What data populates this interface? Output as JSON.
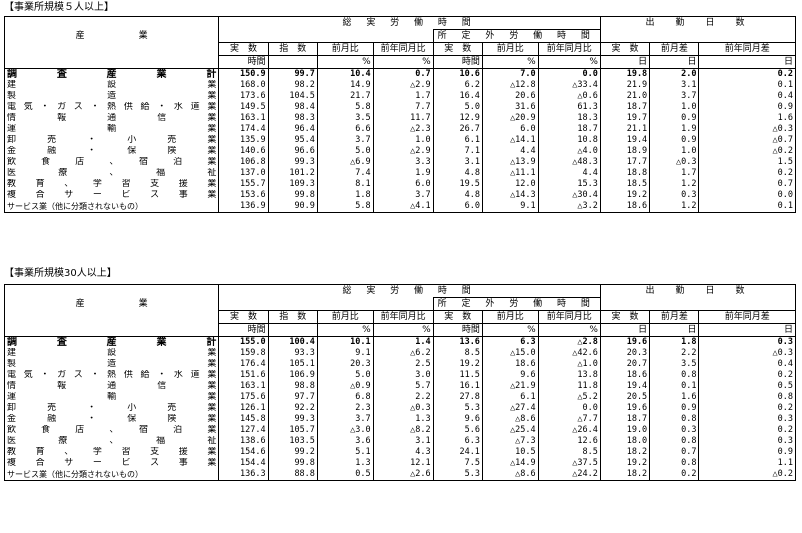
{
  "sections": [
    {
      "caption": "【事業所規模５人以上】",
      "headers": {
        "industry": "産　　　　　　業",
        "total_hours": "総 実 労 働 時 間",
        "overtime": "所 定 外 労 働 時 間",
        "days": "出　勤　日　数",
        "cols": [
          "実　数",
          "指　数",
          "前月比",
          "前年同月比",
          "実　数",
          "前月比",
          "前年同月比",
          "実　数",
          "前月差",
          "前年同月差"
        ],
        "units": [
          "時間",
          "",
          "%",
          "%",
          "時間",
          "%",
          "%",
          "日",
          "日",
          "日"
        ]
      },
      "rows": [
        {
          "name": "調　査　産　業　計",
          "v": [
            "150.9",
            "99.7",
            "10.4",
            "0.7",
            "10.6",
            "7.0",
            "0.0",
            "19.8",
            "2.0",
            "0.2"
          ]
        },
        {
          "name": "建　　　設　　　業",
          "v": [
            "168.0",
            "98.2",
            "14.9",
            "△2.9",
            "6.2",
            "△12.8",
            "△33.4",
            "21.9",
            "3.1",
            "0.1"
          ]
        },
        {
          "name": "製　　　造　　　業",
          "v": [
            "173.6",
            "104.5",
            "21.7",
            "1.7",
            "16.4",
            "20.6",
            "△0.6",
            "21.0",
            "3.7",
            "0.4"
          ]
        },
        {
          "name": "電気・ガス・熱供給・水道業",
          "v": [
            "149.5",
            "98.4",
            "5.8",
            "7.7",
            "5.0",
            "31.6",
            "61.3",
            "18.7",
            "1.0",
            "0.9"
          ]
        },
        {
          "name": "情　報　通　信　業",
          "v": [
            "163.1",
            "98.3",
            "3.5",
            "11.7",
            "12.9",
            "△20.9",
            "18.3",
            "19.7",
            "0.9",
            "1.6"
          ]
        },
        {
          "name": "運　　　輸　　　業",
          "v": [
            "174.4",
            "96.4",
            "6.6",
            "△2.3",
            "26.7",
            "6.0",
            "18.7",
            "21.1",
            "1.9",
            "△0.3"
          ]
        },
        {
          "name": "卸　売　・　小　売　業",
          "v": [
            "135.9",
            "95.4",
            "3.7",
            "1.0",
            "6.1",
            "△14.1",
            "10.8",
            "19.4",
            "0.9",
            "△0.7"
          ]
        },
        {
          "name": "金　融　・　保　険　業",
          "v": [
            "140.6",
            "96.6",
            "5.0",
            "△2.9",
            "7.1",
            "4.4",
            "△4.0",
            "18.9",
            "1.0",
            "△0.2"
          ]
        },
        {
          "name": "飲　食　店　、　宿　泊　業",
          "v": [
            "106.8",
            "99.3",
            "△6.9",
            "3.3",
            "3.1",
            "△13.9",
            "△48.3",
            "17.7",
            "△0.3",
            "1.5"
          ]
        },
        {
          "name": "医　療　、　福　祉",
          "v": [
            "137.0",
            "101.2",
            "7.4",
            "1.9",
            "4.8",
            "△11.1",
            "4.4",
            "18.8",
            "1.7",
            "0.2"
          ]
        },
        {
          "name": "教育、学習支援業",
          "v": [
            "155.7",
            "109.3",
            "8.1",
            "6.0",
            "19.5",
            "12.0",
            "15.3",
            "18.5",
            "1.2",
            "0.7"
          ]
        },
        {
          "name": "複　合　サ　ー　ビ　ス　事　業",
          "v": [
            "153.6",
            "99.8",
            "1.8",
            "3.7",
            "4.8",
            "△14.3",
            "△30.4",
            "19.2",
            "0.3",
            "0.0"
          ]
        },
        {
          "name": "サービス業（他に分類されないもの）",
          "v": [
            "136.9",
            "90.9",
            "5.8",
            "△4.1",
            "6.0",
            "9.1",
            "△3.2",
            "18.6",
            "1.2",
            "0.1"
          ]
        }
      ]
    },
    {
      "caption": "【事業所規模30人以上】",
      "headers": {
        "industry": "産　　　　　　業",
        "total_hours": "総 実 労 働 時 間",
        "overtime": "所 定 外 労 働 時 間",
        "days": "出　勤　日　数",
        "cols": [
          "実　数",
          "指　数",
          "前月比",
          "前年同月比",
          "実　数",
          "前月比",
          "前年同月比",
          "実　数",
          "前月差",
          "前年同月差"
        ],
        "units": [
          "時間",
          "",
          "%",
          "%",
          "時間",
          "%",
          "%",
          "日",
          "日",
          "日"
        ]
      },
      "rows": [
        {
          "name": "調　査　産　業　計",
          "v": [
            "155.0",
            "100.4",
            "10.1",
            "1.4",
            "13.6",
            "6.3",
            "△2.8",
            "19.6",
            "1.8",
            "0.3"
          ]
        },
        {
          "name": "建　　　設　　　業",
          "v": [
            "159.8",
            "93.3",
            "9.1",
            "△6.2",
            "8.5",
            "△15.0",
            "△42.6",
            "20.3",
            "2.2",
            "△0.3"
          ]
        },
        {
          "name": "製　　　造　　　業",
          "v": [
            "176.4",
            "105.1",
            "20.3",
            "2.5",
            "19.2",
            "18.6",
            "△1.0",
            "20.7",
            "3.5",
            "0.4"
          ]
        },
        {
          "name": "電気・ガス・熱供給・水道業",
          "v": [
            "151.6",
            "106.9",
            "5.0",
            "3.0",
            "11.5",
            "9.6",
            "13.8",
            "18.6",
            "0.8",
            "0.2"
          ]
        },
        {
          "name": "情　報　通　信　業",
          "v": [
            "163.1",
            "98.8",
            "△0.9",
            "5.7",
            "16.1",
            "△21.9",
            "11.8",
            "19.4",
            "0.1",
            "0.5"
          ]
        },
        {
          "name": "運　　　輸　　　業",
          "v": [
            "175.6",
            "97.7",
            "6.8",
            "2.2",
            "27.8",
            "6.1",
            "△5.2",
            "20.5",
            "1.6",
            "0.8"
          ]
        },
        {
          "name": "卸　売　・　小　売　業",
          "v": [
            "126.1",
            "92.2",
            "2.3",
            "△0.3",
            "5.3",
            "△27.4",
            "0.0",
            "19.6",
            "0.9",
            "0.2"
          ]
        },
        {
          "name": "金　融　・　保　険　業",
          "v": [
            "145.8",
            "99.3",
            "3.7",
            "1.3",
            "9.6",
            "△8.6",
            "△7.7",
            "18.7",
            "0.8",
            "0.3"
          ]
        },
        {
          "name": "飲　食　店　、　宿　泊　業",
          "v": [
            "127.4",
            "105.7",
            "△3.0",
            "△8.2",
            "5.6",
            "△25.4",
            "△26.4",
            "19.0",
            "0.3",
            "0.2"
          ]
        },
        {
          "name": "医　療　、　福　祉",
          "v": [
            "138.6",
            "103.5",
            "3.6",
            "3.1",
            "6.3",
            "△7.3",
            "12.6",
            "18.0",
            "0.8",
            "0.3"
          ]
        },
        {
          "name": "教育、学習支援業",
          "v": [
            "154.6",
            "99.2",
            "5.1",
            "4.3",
            "24.1",
            "10.5",
            "8.5",
            "18.2",
            "0.7",
            "0.9"
          ]
        },
        {
          "name": "複　合　サ　ー　ビ　ス　事　業",
          "v": [
            "154.4",
            "99.8",
            "1.3",
            "12.1",
            "7.5",
            "△14.9",
            "△37.5",
            "19.2",
            "0.8",
            "1.1"
          ]
        },
        {
          "name": "サービス業（他に分類されないもの）",
          "v": [
            "136.3",
            "88.8",
            "0.5",
            "△2.6",
            "5.3",
            "△8.6",
            "△24.2",
            "18.2",
            "0.2",
            "△0.2"
          ]
        }
      ]
    }
  ]
}
